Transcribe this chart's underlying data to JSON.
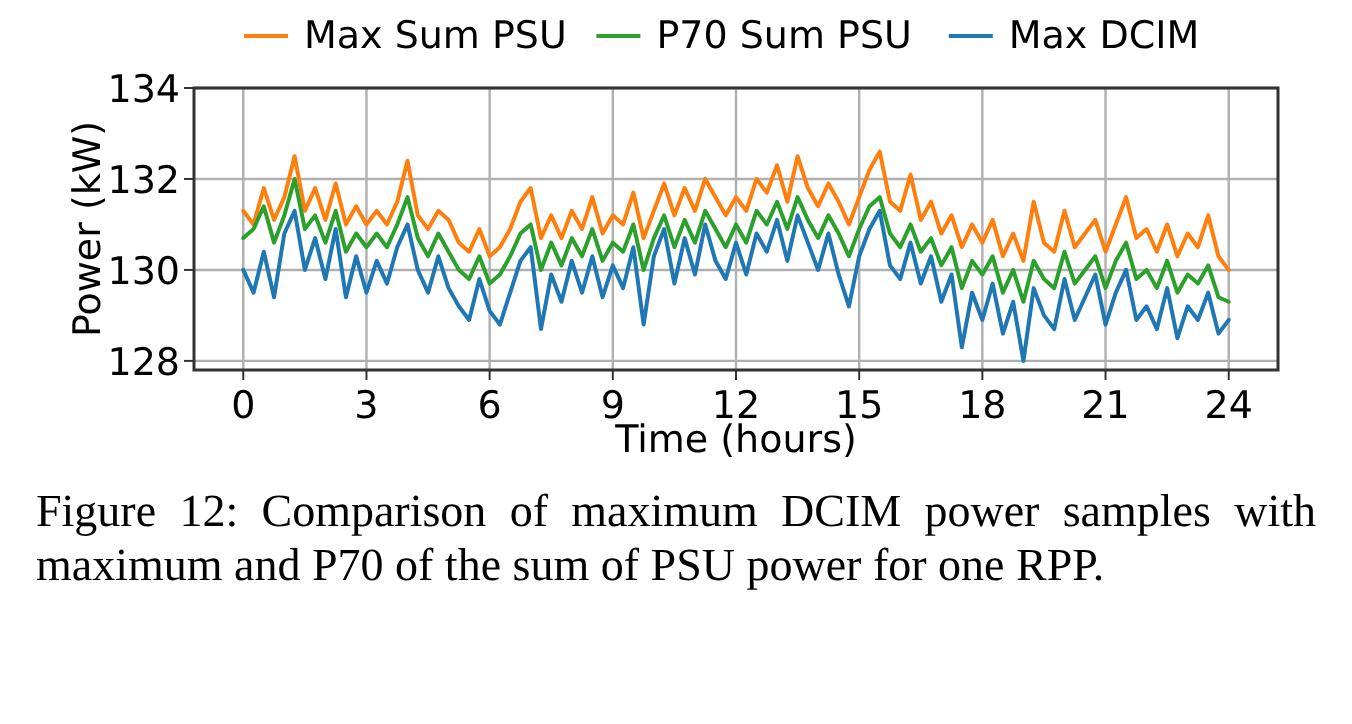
{
  "chart_data": {
    "type": "line",
    "xlabel": "Time (hours)",
    "ylabel": "Power (kW)",
    "xlim": [
      -1.2,
      25.2
    ],
    "ylim": [
      127.8,
      134
    ],
    "xticks": [
      0,
      3,
      6,
      9,
      12,
      15,
      18,
      21,
      24
    ],
    "yticks": [
      128,
      130,
      132,
      134
    ],
    "grid": true,
    "legend": "top",
    "line_style": "solid",
    "marker": "none",
    "annotations": [
      "Figure 12: Comparison of maximum DCIM power samples with maximum and P70 of the sum of PSU power for one RPP."
    ],
    "x": [
      0,
      0.25,
      0.5,
      0.75,
      1,
      1.25,
      1.5,
      1.75,
      2,
      2.25,
      2.5,
      2.75,
      3,
      3.25,
      3.5,
      3.75,
      4,
      4.25,
      4.5,
      4.75,
      5,
      5.25,
      5.5,
      5.75,
      6,
      6.25,
      6.5,
      6.75,
      7,
      7.25,
      7.5,
      7.75,
      8,
      8.25,
      8.5,
      8.75,
      9,
      9.25,
      9.5,
      9.75,
      10,
      10.25,
      10.5,
      10.75,
      11,
      11.25,
      11.5,
      11.75,
      12,
      12.25,
      12.5,
      12.75,
      13,
      13.25,
      13.5,
      13.75,
      14,
      14.25,
      14.5,
      14.75,
      15,
      15.25,
      15.5,
      15.75,
      16,
      16.25,
      16.5,
      16.75,
      17,
      17.25,
      17.5,
      17.75,
      18,
      18.25,
      18.5,
      18.75,
      19,
      19.25,
      19.5,
      19.75,
      20,
      20.25,
      20.5,
      20.75,
      21,
      21.25,
      21.5,
      21.75,
      22,
      22.25,
      22.5,
      22.75,
      23,
      23.25,
      23.5,
      23.75,
      24
    ],
    "series": [
      {
        "name": "Max Sum PSU",
        "color": "#ff7f0e",
        "values": [
          131.3,
          131.0,
          131.8,
          131.1,
          131.6,
          132.5,
          131.3,
          131.8,
          131.1,
          131.9,
          131.0,
          131.4,
          131.0,
          131.3,
          131.0,
          131.5,
          132.4,
          131.2,
          130.9,
          131.3,
          131.1,
          130.6,
          130.4,
          130.9,
          130.3,
          130.5,
          130.9,
          131.5,
          131.8,
          130.7,
          131.2,
          130.7,
          131.3,
          130.9,
          131.6,
          130.8,
          131.2,
          131.0,
          131.7,
          130.7,
          131.3,
          131.9,
          131.2,
          131.8,
          131.3,
          132.0,
          131.6,
          131.2,
          131.6,
          131.3,
          132.0,
          131.7,
          132.3,
          131.5,
          132.5,
          131.8,
          131.4,
          131.9,
          131.5,
          131.0,
          131.6,
          132.2,
          132.6,
          131.5,
          131.3,
          132.1,
          131.1,
          131.5,
          130.8,
          131.2,
          130.5,
          131.0,
          130.6,
          131.1,
          130.3,
          130.8,
          130.2,
          131.5,
          130.6,
          130.4,
          131.3,
          130.5,
          130.8,
          131.1,
          130.4,
          131.0,
          131.6,
          130.7,
          130.9,
          130.4,
          131.0,
          130.3,
          130.8,
          130.5,
          131.2,
          130.3,
          130.0
        ]
      },
      {
        "name": "P70 Sum PSU",
        "color": "#2ca02c",
        "values": [
          130.7,
          130.9,
          131.4,
          130.6,
          131.2,
          132.0,
          130.9,
          131.2,
          130.6,
          131.3,
          130.4,
          130.8,
          130.5,
          130.8,
          130.5,
          131.0,
          131.6,
          130.7,
          130.3,
          130.8,
          130.4,
          130.0,
          129.8,
          130.3,
          129.7,
          129.9,
          130.3,
          130.8,
          131.0,
          130.0,
          130.6,
          130.1,
          130.7,
          130.3,
          130.9,
          130.2,
          130.6,
          130.4,
          131.0,
          130.0,
          130.7,
          131.2,
          130.5,
          131.1,
          130.6,
          131.3,
          130.9,
          130.5,
          131.0,
          130.6,
          131.3,
          131.0,
          131.5,
          130.9,
          131.6,
          131.1,
          130.7,
          131.2,
          130.8,
          130.3,
          130.9,
          131.4,
          131.6,
          130.8,
          130.5,
          131.0,
          130.4,
          130.7,
          130.1,
          130.5,
          129.6,
          130.2,
          129.9,
          130.3,
          129.5,
          130.0,
          129.3,
          130.2,
          129.8,
          129.6,
          130.4,
          129.7,
          130.0,
          130.3,
          129.6,
          130.2,
          130.6,
          129.8,
          130.0,
          129.6,
          130.2,
          129.5,
          129.9,
          129.7,
          130.1,
          129.4,
          129.3
        ]
      },
      {
        "name": "Max DCIM",
        "color": "#1f77b4",
        "values": [
          130.0,
          129.5,
          130.4,
          129.4,
          130.8,
          131.3,
          130.0,
          130.7,
          129.8,
          130.9,
          129.4,
          130.3,
          129.5,
          130.2,
          129.7,
          130.5,
          131.0,
          130.0,
          129.5,
          130.3,
          129.6,
          129.2,
          128.9,
          129.8,
          129.1,
          128.8,
          129.5,
          130.2,
          130.5,
          128.7,
          129.9,
          129.3,
          130.2,
          129.5,
          130.3,
          129.4,
          130.1,
          129.6,
          130.5,
          128.8,
          130.3,
          130.9,
          129.7,
          130.7,
          129.9,
          131.0,
          130.2,
          129.8,
          130.6,
          129.9,
          130.8,
          130.4,
          131.1,
          130.2,
          131.2,
          130.6,
          130.0,
          130.8,
          129.9,
          129.2,
          130.3,
          130.9,
          131.3,
          130.1,
          129.8,
          130.6,
          129.7,
          130.3,
          129.3,
          129.9,
          128.3,
          129.5,
          128.9,
          129.7,
          128.6,
          129.3,
          128.0,
          129.6,
          129.0,
          128.7,
          129.8,
          128.9,
          129.4,
          129.9,
          128.8,
          129.5,
          130.0,
          128.9,
          129.2,
          128.7,
          129.6,
          128.5,
          129.2,
          128.9,
          129.5,
          128.6,
          128.9
        ]
      }
    ]
  }
}
